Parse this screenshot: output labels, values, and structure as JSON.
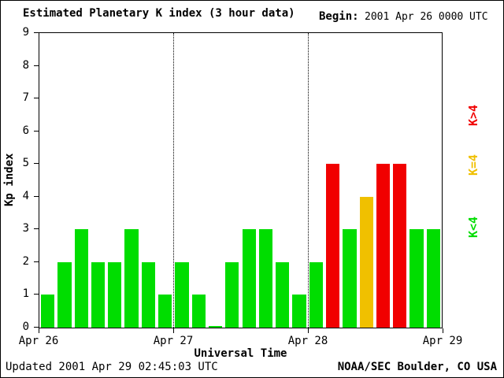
{
  "header": {
    "title": "Estimated Planetary K index (3 hour data)",
    "begin_label": "Begin:",
    "begin_value": "2001 Apr 26 0000 UTC"
  },
  "legend": [
    {
      "label": "K>4",
      "color": "#f10000"
    },
    {
      "label": "K=4",
      "color": "#f0c000"
    },
    {
      "label": "K<4",
      "color": "#00dd00"
    }
  ],
  "footer": {
    "updated": "Updated 2001 Apr 29 02:45:03 UTC",
    "source": "NOAA/SEC Boulder, CO USA"
  },
  "chart_data": {
    "type": "bar",
    "title": "Estimated Planetary K index (3 hour data)",
    "xlabel": "Universal Time",
    "ylabel": "Kp index",
    "ylim": [
      0,
      9
    ],
    "y_ticks": [
      0,
      1,
      2,
      3,
      4,
      5,
      6,
      7,
      8,
      9
    ],
    "x_tick_labels": [
      "Apr 26",
      "Apr 27",
      "Apr 28",
      "Apr 29"
    ],
    "bin_hours": 3,
    "begin": "2001 Apr 26 0000 UTC",
    "values": [
      1,
      2,
      3,
      2,
      2,
      3,
      2,
      1,
      2,
      1,
      0,
      2,
      3,
      3,
      2,
      1,
      2,
      5,
      3,
      4,
      5,
      5,
      3,
      3
    ],
    "colors": {
      "lt4": "#00dd00",
      "eq4": "#f0c000",
      "gt4": "#f10000"
    },
    "day_boundaries": [
      "Apr 27",
      "Apr 28"
    ],
    "grid": "vertical-dotted-day-lines",
    "legend_position": "right-rotated"
  }
}
